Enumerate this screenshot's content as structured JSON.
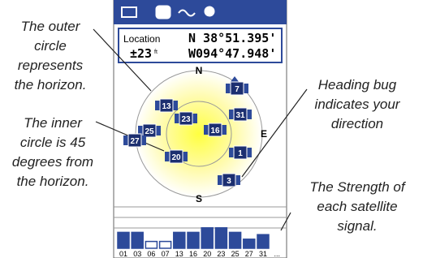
{
  "annotations": {
    "outer_circle": [
      "The outer",
      "circle",
      "represents",
      "the horizon."
    ],
    "inner_circle": [
      "The inner",
      "circle is  45",
      "degrees from",
      "the horizon."
    ],
    "heading_bug": [
      "Heading bug",
      "indicates your",
      "direction"
    ],
    "strength": [
      "The Strength of",
      "each satellite",
      "signal."
    ]
  },
  "location": {
    "label": "Location",
    "accuracy": "±23",
    "accuracy_unit": "ft",
    "lat": "N  38°51.395'",
    "lon": "W094°47.948'"
  },
  "compass": {
    "north": "N",
    "south": "S",
    "east": "E"
  },
  "satellites": [
    "13",
    "23",
    "16",
    "31",
    "25",
    "27",
    "20",
    "1",
    "3",
    "7"
  ],
  "signal_bars": {
    "labels": [
      "01",
      "03",
      "06",
      "07",
      "13",
      "16",
      "20",
      "23",
      "25",
      "27",
      "31",
      "..."
    ],
    "strength": [
      70,
      70,
      30,
      30,
      70,
      70,
      90,
      90,
      70,
      40,
      60,
      null
    ],
    "hollow": [
      false,
      false,
      true,
      true,
      false,
      false,
      false,
      false,
      false,
      false,
      false,
      false
    ]
  }
}
